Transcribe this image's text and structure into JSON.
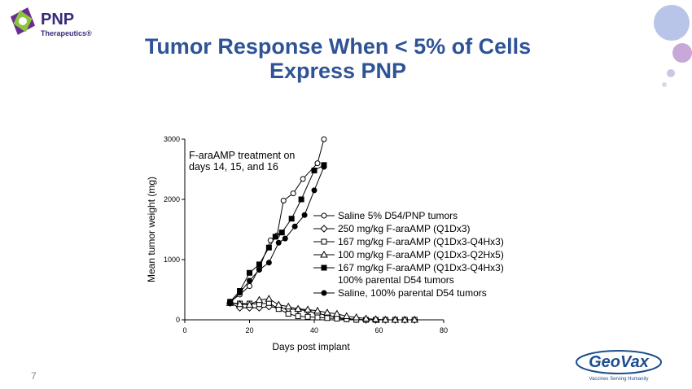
{
  "header": {
    "logo_name": "PNP",
    "logo_sub": "Therapeutics®"
  },
  "chart_data": {
    "type": "line",
    "title": "Tumor Response When < 5% of Cells Express PNP",
    "x_label": "Days post implant",
    "y_label": "Mean tumor weight (mg)",
    "annotation": "F-araAMP treatment on days 14, 15, and 16",
    "xlim": [
      0,
      80
    ],
    "xticks": [
      0,
      20,
      40,
      60,
      80
    ],
    "ylim": [
      0,
      3000
    ],
    "yticks": [
      0,
      1000,
      2000,
      3000
    ],
    "series": [
      {
        "name": "Saline 5% D54/PNP tumors",
        "color": "#000000",
        "marker": "circle",
        "filled": false,
        "x": [
          14,
          17,
          20,
          23,
          26.5,
          28.5,
          30.5,
          33.5,
          36.5,
          41,
          43
        ],
        "values": [
          300,
          420,
          560,
          860,
          1320,
          1400,
          1980,
          2100,
          2340,
          2600,
          3000
        ]
      },
      {
        "name": "250 mg/kg F-araAMP (Q1Dx3)",
        "color": "#000000",
        "marker": "diamond",
        "filled": false,
        "x": [
          14,
          17,
          20,
          23,
          26,
          29,
          32,
          35,
          38,
          41,
          44,
          47,
          50,
          53,
          56,
          59,
          62,
          65,
          68,
          71
        ],
        "values": [
          280,
          200,
          200,
          200,
          220,
          200,
          180,
          170,
          150,
          100,
          80,
          40,
          20,
          10,
          0,
          0,
          0,
          0,
          0,
          0
        ]
      },
      {
        "name": "167 mg/kg F-araAMP (Q1Dx3-Q4Hx3)",
        "color": "#000000",
        "marker": "square",
        "filled": false,
        "x": [
          14,
          17,
          20,
          23,
          26,
          29,
          32,
          35,
          38,
          41,
          44,
          47,
          50,
          53,
          56,
          59,
          62,
          65,
          68,
          71
        ],
        "values": [
          280,
          270,
          270,
          260,
          280,
          180,
          100,
          60,
          50,
          40,
          30,
          20,
          10,
          0,
          0,
          0,
          0,
          0,
          0,
          0
        ]
      },
      {
        "name": "100 mg/kg F-araAMP (Q1Dx3-Q2Hx5)",
        "color": "#000000",
        "marker": "triangle",
        "filled": false,
        "x": [
          14,
          17,
          20,
          23,
          26,
          29,
          32,
          35,
          38,
          41,
          44,
          47,
          50,
          53,
          56,
          59,
          62,
          65,
          68,
          71
        ],
        "values": [
          280,
          260,
          250,
          330,
          350,
          250,
          220,
          180,
          170,
          150,
          120,
          100,
          60,
          40,
          20,
          10,
          0,
          0,
          0,
          0
        ]
      },
      {
        "name": "167 mg/kg  F-araAMP (Q1Dx3-Q4Hx3) 100% parental D54 tumors",
        "color": "#000000",
        "marker": "square",
        "filled": true,
        "x": [
          14,
          17,
          20,
          23,
          26,
          28,
          30,
          33,
          36,
          40,
          43
        ],
        "values": [
          300,
          480,
          780,
          920,
          1200,
          1380,
          1450,
          1680,
          2000,
          2480,
          2570
        ]
      },
      {
        "name": "Saline, 100% parental D54 tumors",
        "color": "#000000",
        "marker": "circle",
        "filled": true,
        "x": [
          14,
          17,
          20,
          23,
          26,
          29,
          31,
          34,
          37,
          40,
          43
        ],
        "values": [
          280,
          450,
          650,
          830,
          950,
          1280,
          1350,
          1550,
          1740,
          2150,
          2540
        ]
      }
    ]
  },
  "footer": {
    "page_number": "7",
    "brand": "GeoVax",
    "tagline": "Vaccines Serving Humanity"
  }
}
